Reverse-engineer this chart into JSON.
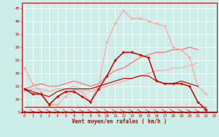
{
  "xlabel": "Vent moyen/en rafales ( km/h )",
  "bg_color": "#cceee8",
  "grid_color": "#ffffff",
  "x": [
    0,
    1,
    2,
    3,
    4,
    5,
    6,
    7,
    8,
    9,
    10,
    11,
    12,
    13,
    14,
    15,
    16,
    17,
    18,
    19,
    20,
    21,
    22,
    23
  ],
  "line_dark1": [
    14,
    12,
    12,
    8,
    11,
    13,
    13,
    11,
    9,
    14,
    19,
    25,
    28,
    28,
    27,
    26,
    17,
    16,
    16,
    16,
    15,
    9,
    6,
    null
  ],
  "line_light_peak": [
    22,
    16,
    13,
    8,
    8,
    11,
    14,
    13,
    9,
    16,
    32,
    39,
    44,
    41,
    41,
    40,
    39,
    38,
    30,
    29,
    26,
    15,
    12,
    null
  ],
  "line_diag1": [
    14,
    15,
    16,
    15,
    15,
    16,
    17,
    16,
    15,
    16,
    19,
    21,
    22,
    24,
    26,
    27,
    28,
    28,
    29,
    29,
    30,
    29,
    null,
    null
  ],
  "line_diag2": [
    13,
    14,
    14,
    13,
    14,
    14,
    15,
    14,
    13,
    14,
    15,
    16,
    17,
    18,
    19,
    20,
    21,
    21,
    22,
    22,
    23,
    24,
    null,
    null
  ],
  "line_flat": [
    7,
    7,
    7,
    7,
    7,
    7,
    7,
    7,
    7,
    7,
    7,
    7,
    7,
    7,
    7,
    7,
    7,
    7,
    7,
    7,
    7,
    7,
    7,
    null
  ],
  "line_dark2": [
    14,
    13,
    12,
    11,
    13,
    14,
    14,
    14,
    14,
    15,
    16,
    17,
    18,
    18,
    19,
    19,
    17,
    16,
    16,
    17,
    16,
    15,
    null,
    null
  ],
  "colors": {
    "dark_red": "#cc0000",
    "light_pink": "#ffaaaa",
    "med_pink": "#ff7777",
    "pale_pink": "#ffcccc"
  },
  "ylim": [
    5,
    47
  ],
  "yticks": [
    5,
    10,
    15,
    20,
    25,
    30,
    35,
    40,
    45
  ],
  "xlim": [
    -0.3,
    23.3
  ]
}
